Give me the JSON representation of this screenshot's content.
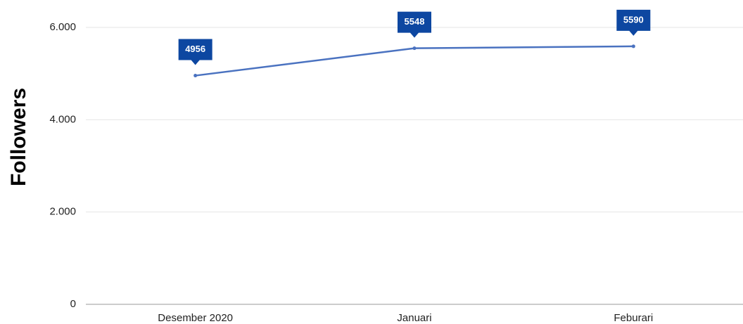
{
  "chart_data": {
    "type": "line",
    "y_label": "Followers",
    "categories": [
      "Desember 2020",
      "Januari",
      "Feburari"
    ],
    "series": [
      {
        "name": "Followers",
        "color": "#4a72c0",
        "values": [
          4956,
          5548,
          5590
        ]
      }
    ],
    "ylim": [
      0,
      6000
    ],
    "yticks": [
      0,
      {
        "value": 2000,
        "label": "2.000"
      },
      {
        "value": 4000,
        "label": "4.000"
      },
      {
        "value": 6000,
        "label": "6.000"
      }
    ],
    "grid": true,
    "label_color": "#0d47a1"
  }
}
